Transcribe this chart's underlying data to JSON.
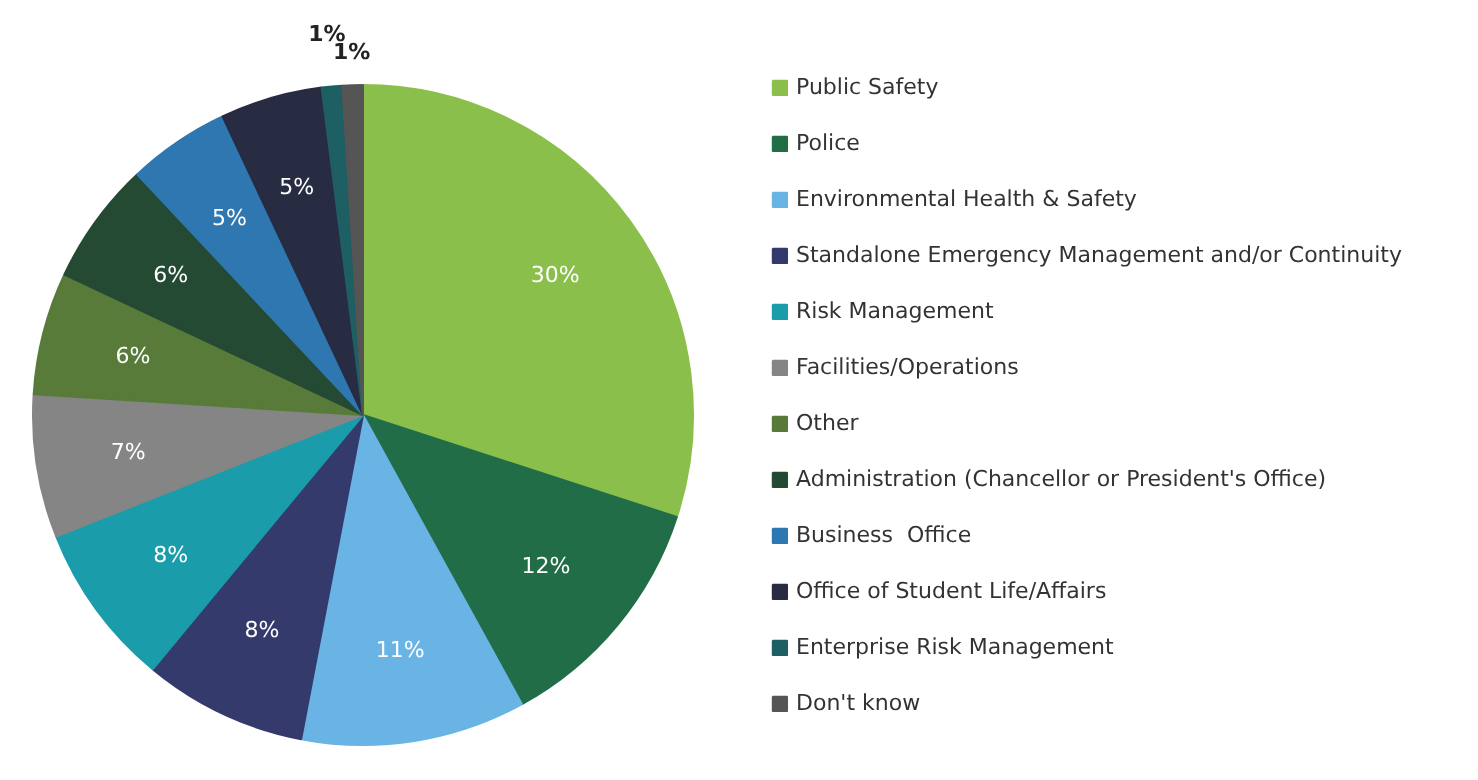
{
  "chart_data": {
    "type": "pie",
    "categories": [
      "Public Safety",
      "Police",
      "Environmental Health & Safety",
      "Standalone Emergency Management and/or Continuity",
      "Risk Management",
      "Facilities/Operations",
      "Other",
      "Administration (Chancellor or President's Office)",
      "Business  Office",
      "Office of Student Life/Affairs",
      "Enterprise Risk Management",
      "Don't know"
    ],
    "values": [
      30,
      12,
      11,
      8,
      8,
      7,
      6,
      6,
      5,
      5,
      1,
      1
    ],
    "value_labels": [
      "30%",
      "12%",
      "11%",
      "8%",
      "8%",
      "7%",
      "6%",
      "6%",
      "5%",
      "5%",
      "1%",
      "1%"
    ],
    "colors": [
      "#8bbf4b",
      "#216d48",
      "#69b4e4",
      "#343a6c",
      "#1a9cab",
      "#858585",
      "#587b39",
      "#244a33",
      "#2f77b0",
      "#272c42",
      "#1e5f64",
      "#555555"
    ],
    "legend": "right"
  }
}
